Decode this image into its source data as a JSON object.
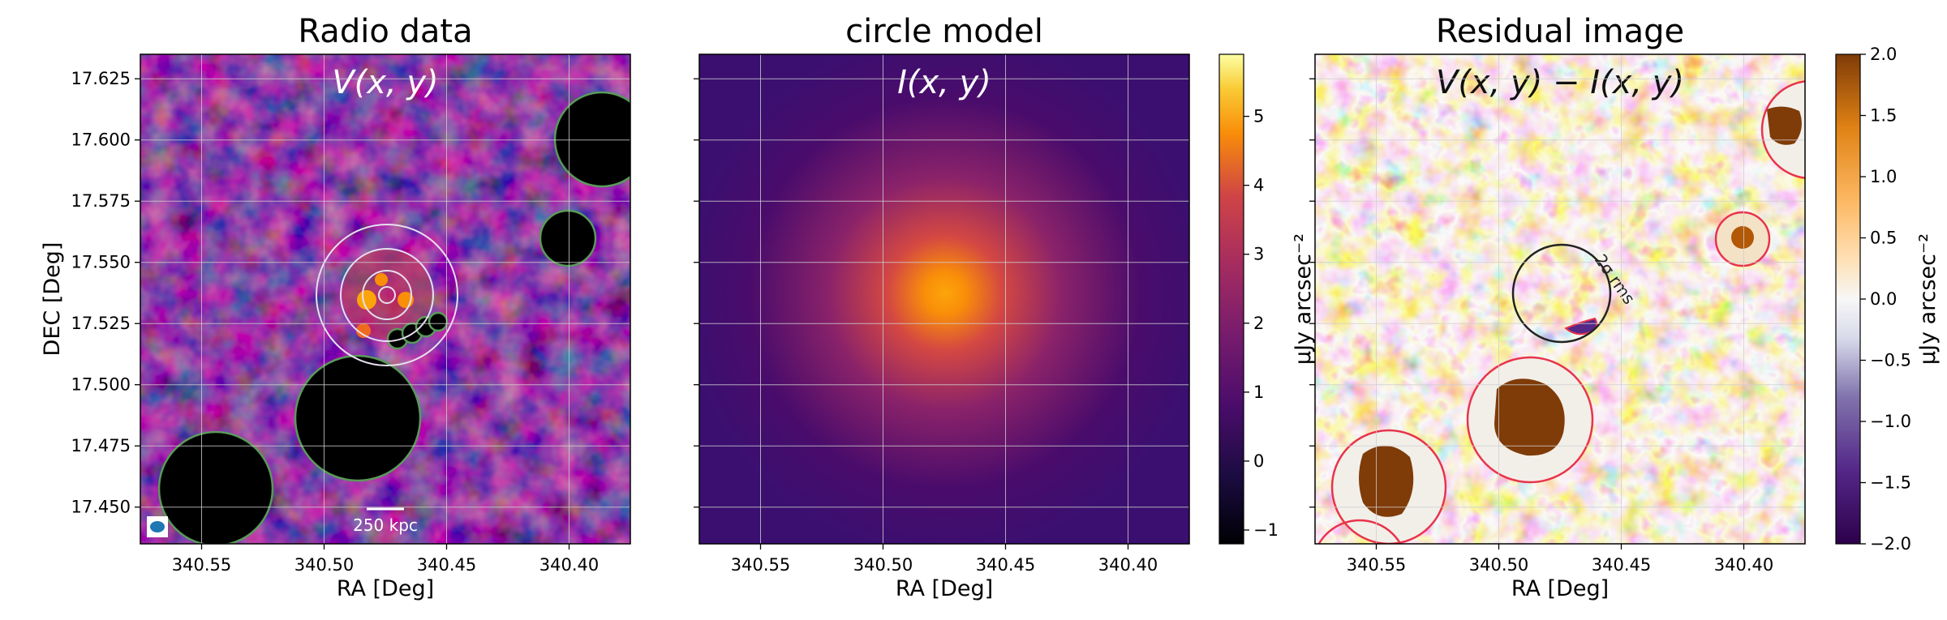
{
  "panels": [
    {
      "title": "Radio data",
      "overlay": "V(x, y)",
      "xlabel": "RA [Deg]",
      "ylabel": "DEC [Deg]",
      "scalebar_label": "250 kpc"
    },
    {
      "title": "circle model",
      "overlay": "I(x, y)",
      "xlabel": "RA [Deg]",
      "ylabel": "",
      "colorbar_label": "μJy arcsec⁻²",
      "colorbar_ticks": [
        "5",
        "4",
        "3",
        "2",
        "1",
        "0",
        "−1"
      ]
    },
    {
      "title": "Residual image",
      "overlay": "V(x, y) − I(x, y)",
      "xlabel": "RA [Deg]",
      "ylabel": "",
      "colorbar_label": "μJy arcsec⁻²",
      "colorbar_ticks": [
        "2.0",
        "1.5",
        "1.0",
        "0.5",
        "0.0",
        "−0.5",
        "−1.0",
        "−1.5",
        "−2.0"
      ],
      "rms_label": "2σ rms"
    }
  ],
  "colors": {
    "inferno_dark": "#000004",
    "inferno_mid": "#bc3754",
    "inferno_bright": "#fcffa4",
    "puor_orange": "#b35806",
    "puor_white": "#f7f7f7",
    "puor_purple": "#542788",
    "mask_green": "#5a9a5a",
    "mask_red": "#e8344a"
  },
  "chart_data": [
    {
      "type": "heatmap",
      "title": "Radio data",
      "xlabel": "RA [Deg]",
      "ylabel": "DEC [Deg]",
      "xlim": [
        340.575,
        340.375
      ],
      "ylim": [
        17.435,
        17.635
      ],
      "xticks": [
        340.55,
        340.5,
        340.45,
        340.4
      ],
      "yticks": [
        17.45,
        17.475,
        17.5,
        17.525,
        17.55,
        17.575,
        17.6,
        17.625
      ],
      "xtick_labels": [
        "340.55",
        "340.50",
        "340.45",
        "340.40"
      ],
      "ytick_labels": [
        "17.450",
        "17.475",
        "17.500",
        "17.525",
        "17.550",
        "17.575",
        "17.600",
        "17.625"
      ],
      "grid": true,
      "colormap": "inferno",
      "annotation": "V(x, y)",
      "scalebar": "250 kpc",
      "source_center": [
        340.479,
        17.537
      ]
    },
    {
      "type": "heatmap",
      "title": "circle model",
      "xlabel": "RA [Deg]",
      "ylabel": "",
      "xlim": [
        340.575,
        340.375
      ],
      "ylim": [
        17.435,
        17.635
      ],
      "xticks": [
        340.55,
        340.5,
        340.45,
        340.4
      ],
      "xtick_labels": [
        "340.55",
        "340.50",
        "340.45",
        "340.40"
      ],
      "grid": true,
      "colormap": "inferno",
      "annotation": "I(x, y)",
      "model_center": [
        340.479,
        17.537
      ],
      "colorbar": {
        "label": "μJy arcsec⁻²",
        "range": [
          -1.2,
          5.9
        ],
        "ticks": [
          -1,
          0,
          1,
          2,
          3,
          4,
          5
        ]
      }
    },
    {
      "type": "heatmap",
      "title": "Residual image",
      "xlabel": "RA [Deg]",
      "ylabel": "",
      "xlim": [
        340.575,
        340.375
      ],
      "ylim": [
        17.435,
        17.635
      ],
      "xticks": [
        340.55,
        340.5,
        340.45,
        340.4
      ],
      "xtick_labels": [
        "340.55",
        "340.50",
        "340.45",
        "340.40"
      ],
      "grid": true,
      "colormap": "PuOr_r",
      "annotation": "V(x, y) − I(x, y)",
      "contour_label": "2σ rms",
      "colorbar": {
        "label": "μJy arcsec⁻²",
        "range": [
          -2.0,
          2.0
        ],
        "ticks": [
          -2.0,
          -1.5,
          -1.0,
          -0.5,
          0.0,
          0.5,
          1.0,
          1.5,
          2.0
        ]
      }
    }
  ]
}
